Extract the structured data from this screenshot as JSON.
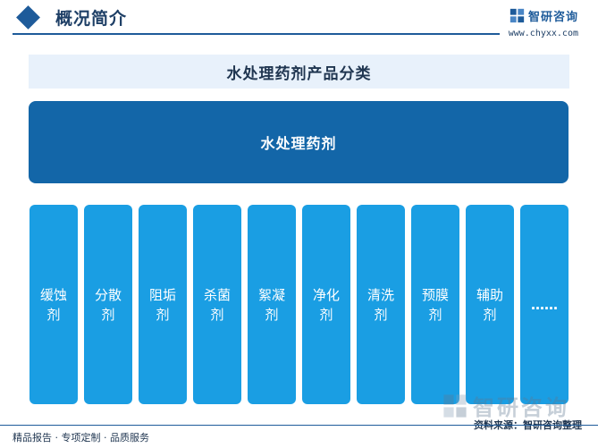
{
  "header": {
    "title": "概况简介",
    "brand_name": "智研咨询",
    "brand_url": "www.chyxx.com"
  },
  "diagram": {
    "title": "水处理药剂产品分类",
    "root": "水处理药剂",
    "categories": [
      "缓蚀剂",
      "分散剂",
      "阻垢剂",
      "杀菌剂",
      "絮凝剂",
      "净化剂",
      "清洗剂",
      "预膜剂",
      "辅助剂",
      "……"
    ]
  },
  "footer": {
    "left_text": "精品报告 · 专项定制 · 品质服务",
    "source_text": "资料来源：智研咨询整理",
    "logo_name": "智研咨询"
  },
  "colors": {
    "accent_dark": "#1366a8",
    "accent_light": "#1a9ee3",
    "band_bg": "#e8f1fb",
    "rule": "#1e5b9a"
  }
}
